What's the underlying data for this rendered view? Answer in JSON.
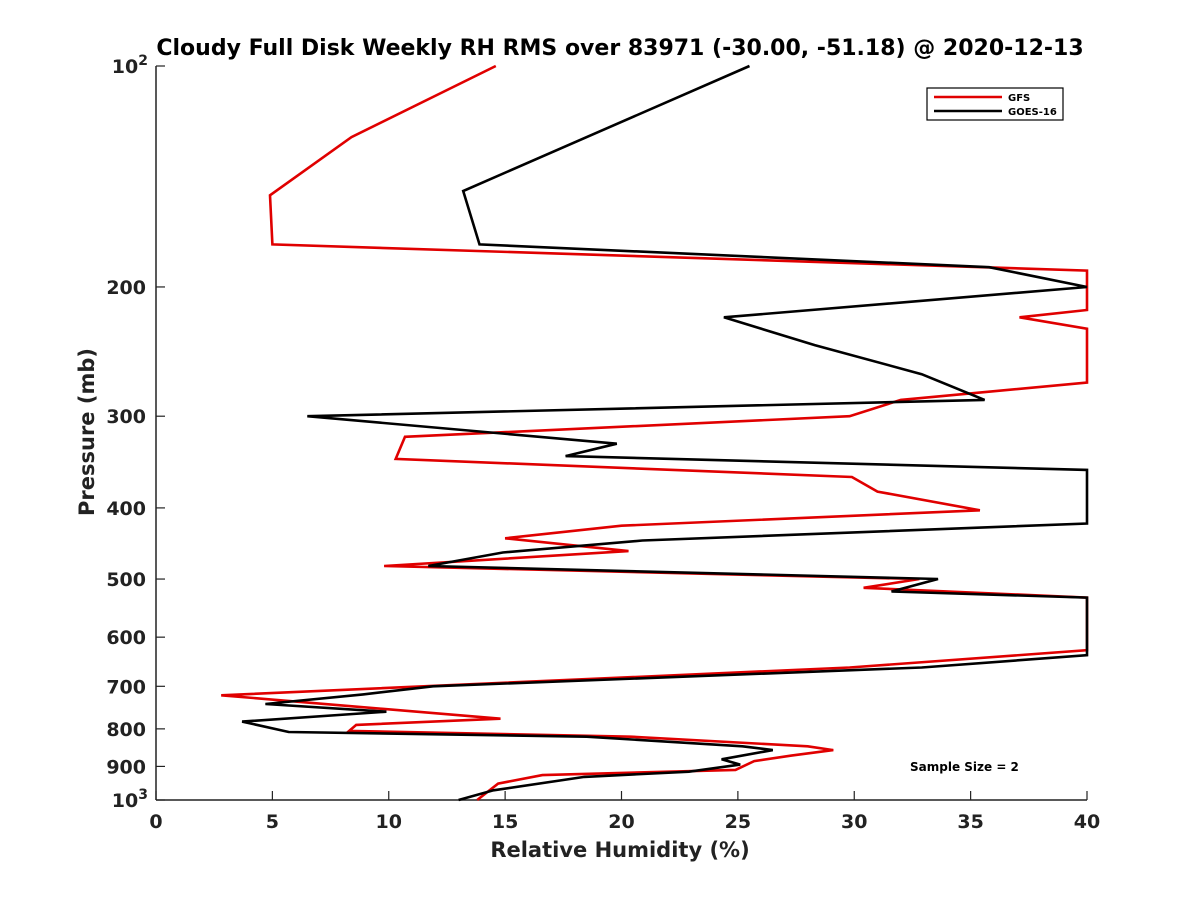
{
  "chart_data": {
    "type": "line",
    "title": "Cloudy Full Disk Weekly RH RMS over 83971 (-30.00, -51.18) @ 2020-12-13",
    "xlabel": "Relative Humidity (%)",
    "ylabel": "Pressure (mb)",
    "xlim": [
      0,
      40
    ],
    "ylim": [
      100,
      1000
    ],
    "y_scale": "log",
    "y_reversed": true,
    "x_ticks": [
      "0",
      "5",
      "10",
      "15",
      "20",
      "25",
      "30",
      "35",
      "40"
    ],
    "x_tick_values": [
      0,
      5,
      10,
      15,
      20,
      25,
      30,
      35,
      40
    ],
    "y_ticks": [
      {
        "value": 100,
        "base": "10",
        "exp": "2"
      },
      {
        "value": 200,
        "label": "200"
      },
      {
        "value": 300,
        "label": "300"
      },
      {
        "value": 400,
        "label": "400"
      },
      {
        "value": 500,
        "label": "500"
      },
      {
        "value": 600,
        "label": "600"
      },
      {
        "value": 700,
        "label": "700"
      },
      {
        "value": 800,
        "label": "800"
      },
      {
        "value": 900,
        "label": "900"
      },
      {
        "value": 1000,
        "base": "10",
        "exp": "3"
      }
    ],
    "legend_position": "top-right",
    "annotation": "Sample Size = 2",
    "series": [
      {
        "name": "GFS",
        "color": "#e00000",
        "points": [
          [
            14.6,
            100
          ],
          [
            8.4,
            125
          ],
          [
            4.9,
            150
          ],
          [
            5.0,
            175
          ],
          [
            40,
            190
          ],
          [
            40,
            215
          ],
          [
            37.1,
            220
          ],
          [
            40,
            228
          ],
          [
            40,
            270
          ],
          [
            32.0,
            285
          ],
          [
            29.8,
            300
          ],
          [
            10.7,
            320
          ],
          [
            10.3,
            343
          ],
          [
            29.9,
            363
          ],
          [
            31.0,
            380
          ],
          [
            35.4,
            403
          ],
          [
            20.0,
            423
          ],
          [
            15.0,
            440
          ],
          [
            20.3,
            458
          ],
          [
            9.8,
            480
          ],
          [
            32.8,
            500
          ],
          [
            30.4,
            514
          ],
          [
            40,
            530
          ],
          [
            40,
            625
          ],
          [
            29.8,
            660
          ],
          [
            2.8,
            720
          ],
          [
            14.8,
            775
          ],
          [
            8.6,
            790
          ],
          [
            8.3,
            805
          ],
          [
            20.4,
            820
          ],
          [
            28.0,
            845
          ],
          [
            29.1,
            855
          ],
          [
            27.3,
            870
          ],
          [
            25.7,
            885
          ],
          [
            24.9,
            910
          ],
          [
            16.6,
            925
          ],
          [
            14.7,
            950
          ],
          [
            13.8,
            1000
          ]
        ]
      },
      {
        "name": "GOES-16",
        "color": "#000000",
        "points": [
          [
            25.5,
            100
          ],
          [
            13.2,
            148
          ],
          [
            13.9,
            175
          ],
          [
            35.8,
            188
          ],
          [
            40,
            200
          ],
          [
            24.4,
            220
          ],
          [
            28.3,
            240
          ],
          [
            32.9,
            263
          ],
          [
            35.6,
            285
          ],
          [
            6.5,
            300
          ],
          [
            19.8,
            327
          ],
          [
            17.6,
            340
          ],
          [
            40,
            355
          ],
          [
            40,
            420
          ],
          [
            20.9,
            443
          ],
          [
            14.9,
            460
          ],
          [
            11.7,
            480
          ],
          [
            33.6,
            500
          ],
          [
            31.6,
            520
          ],
          [
            40,
            530
          ],
          [
            40,
            635
          ],
          [
            32.9,
            660
          ],
          [
            11.9,
            700
          ],
          [
            8.9,
            718
          ],
          [
            4.7,
            740
          ],
          [
            9.9,
            758
          ],
          [
            3.7,
            782
          ],
          [
            5.7,
            808
          ],
          [
            18.5,
            820
          ],
          [
            25.2,
            845
          ],
          [
            26.5,
            855
          ],
          [
            24.3,
            880
          ],
          [
            25.1,
            895
          ],
          [
            22.9,
            915
          ],
          [
            18.4,
            930
          ],
          [
            14.5,
            970
          ],
          [
            13.0,
            1000
          ]
        ]
      }
    ]
  }
}
